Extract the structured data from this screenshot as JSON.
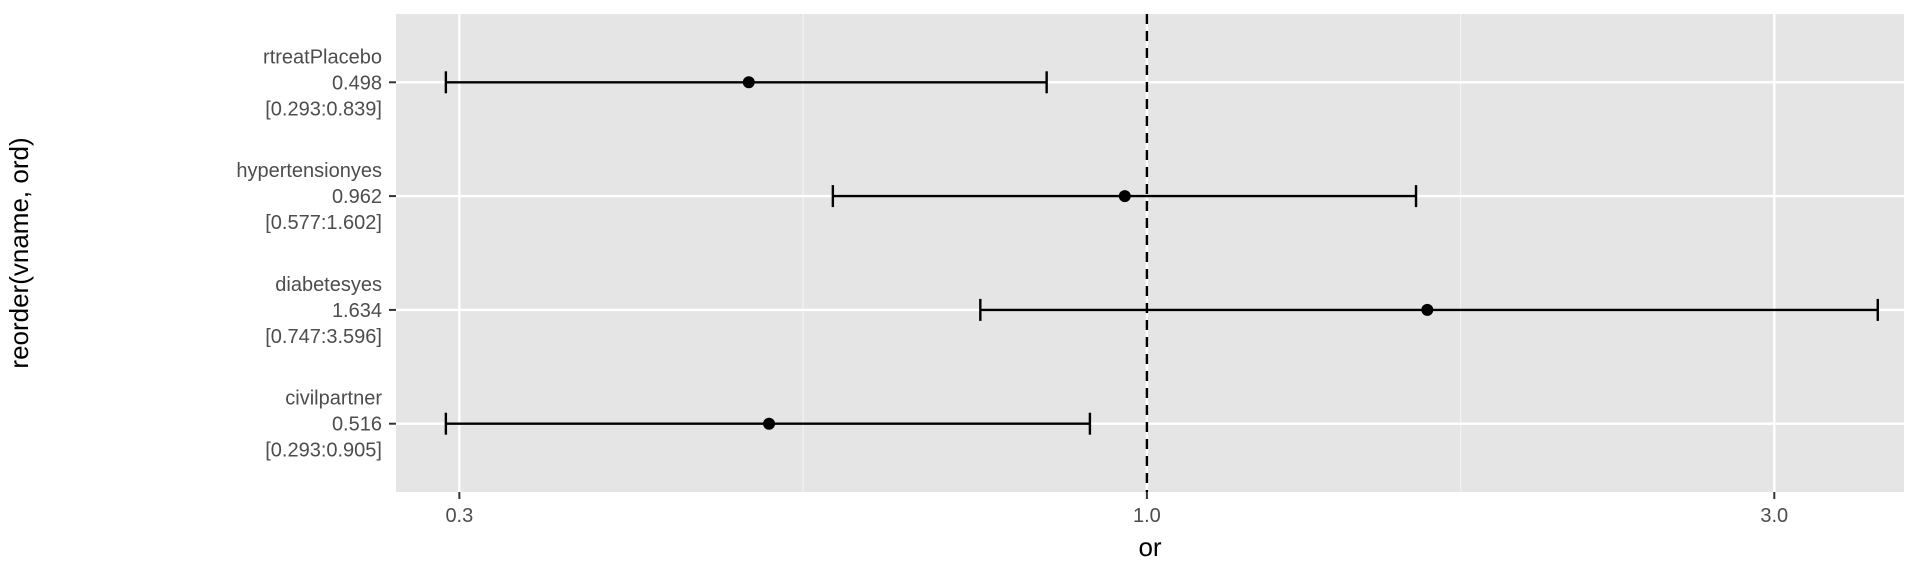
{
  "chart_data": {
    "type": "forest",
    "xlabel": "or",
    "ylabel": "reorder(vname, ord)",
    "x_scale": "log",
    "xlim": [
      0.2685,
      3.765
    ],
    "x_ticks": [
      {
        "value": 0.3,
        "label": "0.3"
      },
      {
        "value": 1.0,
        "label": "1.0"
      },
      {
        "value": 3.0,
        "label": "3.0"
      }
    ],
    "x_minor_ticks": [
      0.5477,
      1.7321
    ],
    "reference_line": {
      "value": 1.0,
      "style": "dashed"
    },
    "grid": true,
    "rows": [
      {
        "name": "rtreatPlacebo",
        "estimate": 0.498,
        "lower": 0.293,
        "upper": 0.839,
        "estimate_text": "0.498",
        "ci_text": "[0.293:0.839]"
      },
      {
        "name": "hypertensionyes",
        "estimate": 0.962,
        "lower": 0.577,
        "upper": 1.602,
        "estimate_text": "0.962",
        "ci_text": "[0.577:1.602]"
      },
      {
        "name": "diabetesyes",
        "estimate": 1.634,
        "lower": 0.747,
        "upper": 3.596,
        "estimate_text": "1.634",
        "ci_text": "[0.747:3.596]"
      },
      {
        "name": "civilpartner",
        "estimate": 0.516,
        "lower": 0.293,
        "upper": 0.905,
        "estimate_text": "0.516",
        "ci_text": "[0.293:0.905]"
      }
    ]
  },
  "colors": {
    "panel_background": "#e5e5e5",
    "grid_major": "#ffffff",
    "grid_minor": "#f2f2f2",
    "marks": "#000000",
    "tick_text": "#4d4d4d"
  }
}
